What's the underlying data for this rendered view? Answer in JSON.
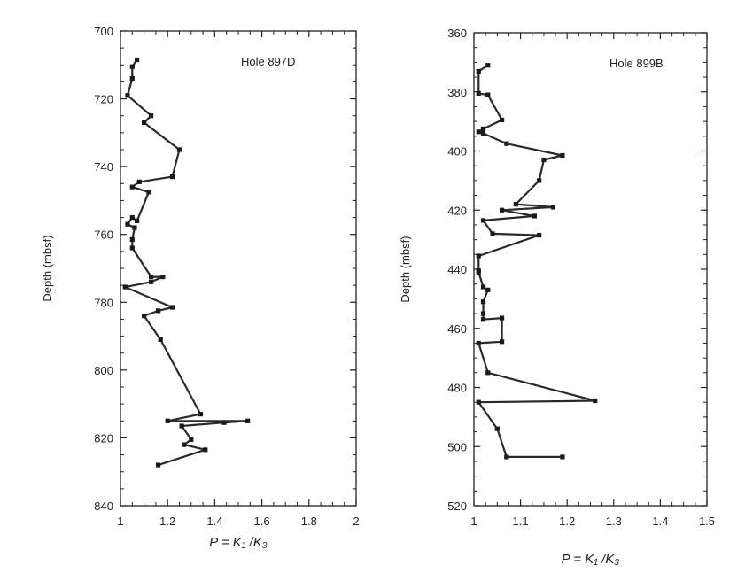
{
  "chart_data": [
    {
      "type": "line",
      "annotation": "Hole 897D",
      "xlabel": "P = K₁ /K₃",
      "ylabel": "Depth (mbsf)",
      "xlim": [
        1,
        2
      ],
      "ylim": [
        700,
        840
      ],
      "y_inverted": true,
      "x_ticks": [
        "1",
        "1.2",
        "1.4",
        "1.6",
        "1.8",
        "2"
      ],
      "y_ticks": [
        "700",
        "720",
        "740",
        "760",
        "780",
        "800",
        "820",
        "840"
      ],
      "marker": "square",
      "series": [
        {
          "points": [
            [
              1.07,
              708.5
            ],
            [
              1.05,
              710.5
            ],
            [
              1.05,
              714
            ],
            [
              1.03,
              719
            ],
            [
              1.13,
              725
            ],
            [
              1.1,
              727
            ],
            [
              1.25,
              735
            ],
            [
              1.22,
              743
            ],
            [
              1.08,
              744.5
            ],
            [
              1.05,
              746
            ],
            [
              1.12,
              747.5
            ],
            [
              1.07,
              756
            ],
            [
              1.05,
              755
            ],
            [
              1.03,
              757
            ],
            [
              1.06,
              758
            ],
            [
              1.05,
              761.5
            ],
            [
              1.05,
              764
            ],
            [
              1.13,
              772.5
            ],
            [
              1.18,
              772.5
            ],
            [
              1.13,
              774
            ],
            [
              1.02,
              775.5
            ],
            [
              1.22,
              781.5
            ],
            [
              1.16,
              782.5
            ],
            [
              1.1,
              784
            ],
            [
              1.17,
              791
            ],
            [
              1.34,
              813
            ],
            [
              1.2,
              815
            ],
            [
              1.54,
              815
            ],
            [
              1.44,
              815.5
            ],
            [
              1.26,
              816.5
            ],
            [
              1.3,
              820.5
            ],
            [
              1.27,
              822
            ],
            [
              1.36,
              823.5
            ],
            [
              1.16,
              828
            ]
          ]
        }
      ]
    },
    {
      "type": "line",
      "annotation": "Hole 899B",
      "xlabel": "P = K₁ /K₃",
      "ylabel": "Depth (mbsf)",
      "xlim": [
        1,
        1.5
      ],
      "ylim": [
        360,
        520
      ],
      "y_inverted": true,
      "x_ticks": [
        "1",
        "1.1",
        "1.2",
        "1.3",
        "1.4",
        "1.5"
      ],
      "y_ticks": [
        "360",
        "380",
        "400",
        "420",
        "440",
        "460",
        "480",
        "500",
        "520"
      ],
      "marker": "square",
      "series": [
        {
          "points": [
            [
              1.03,
              371
            ],
            [
              1.01,
              373
            ],
            [
              1.01,
              380.5
            ],
            [
              1.03,
              381
            ],
            [
              1.06,
              389.5
            ],
            [
              1.02,
              392.5
            ],
            [
              1.01,
              393.5
            ],
            [
              1.02,
              394
            ],
            [
              1.07,
              397.5
            ],
            [
              1.19,
              401.5
            ],
            [
              1.15,
              403
            ],
            [
              1.14,
              410
            ],
            [
              1.09,
              418
            ],
            [
              1.17,
              419
            ],
            [
              1.06,
              420
            ],
            [
              1.13,
              422
            ],
            [
              1.02,
              423.5
            ],
            [
              1.04,
              428
            ],
            [
              1.14,
              428.5
            ],
            [
              1.01,
              435.5
            ],
            [
              1.01,
              440.5
            ],
            [
              1.01,
              441
            ],
            [
              1.02,
              446
            ],
            [
              1.03,
              447
            ],
            [
              1.02,
              451
            ],
            [
              1.02,
              455
            ],
            [
              1.02,
              457
            ],
            [
              1.06,
              456.5
            ],
            [
              1.06,
              464.5
            ],
            [
              1.01,
              465
            ],
            [
              1.03,
              475
            ],
            [
              1.26,
              484.5
            ],
            [
              1.01,
              485
            ],
            [
              1.05,
              494
            ],
            [
              1.07,
              503.5
            ],
            [
              1.19,
              503.5
            ]
          ]
        }
      ]
    }
  ]
}
